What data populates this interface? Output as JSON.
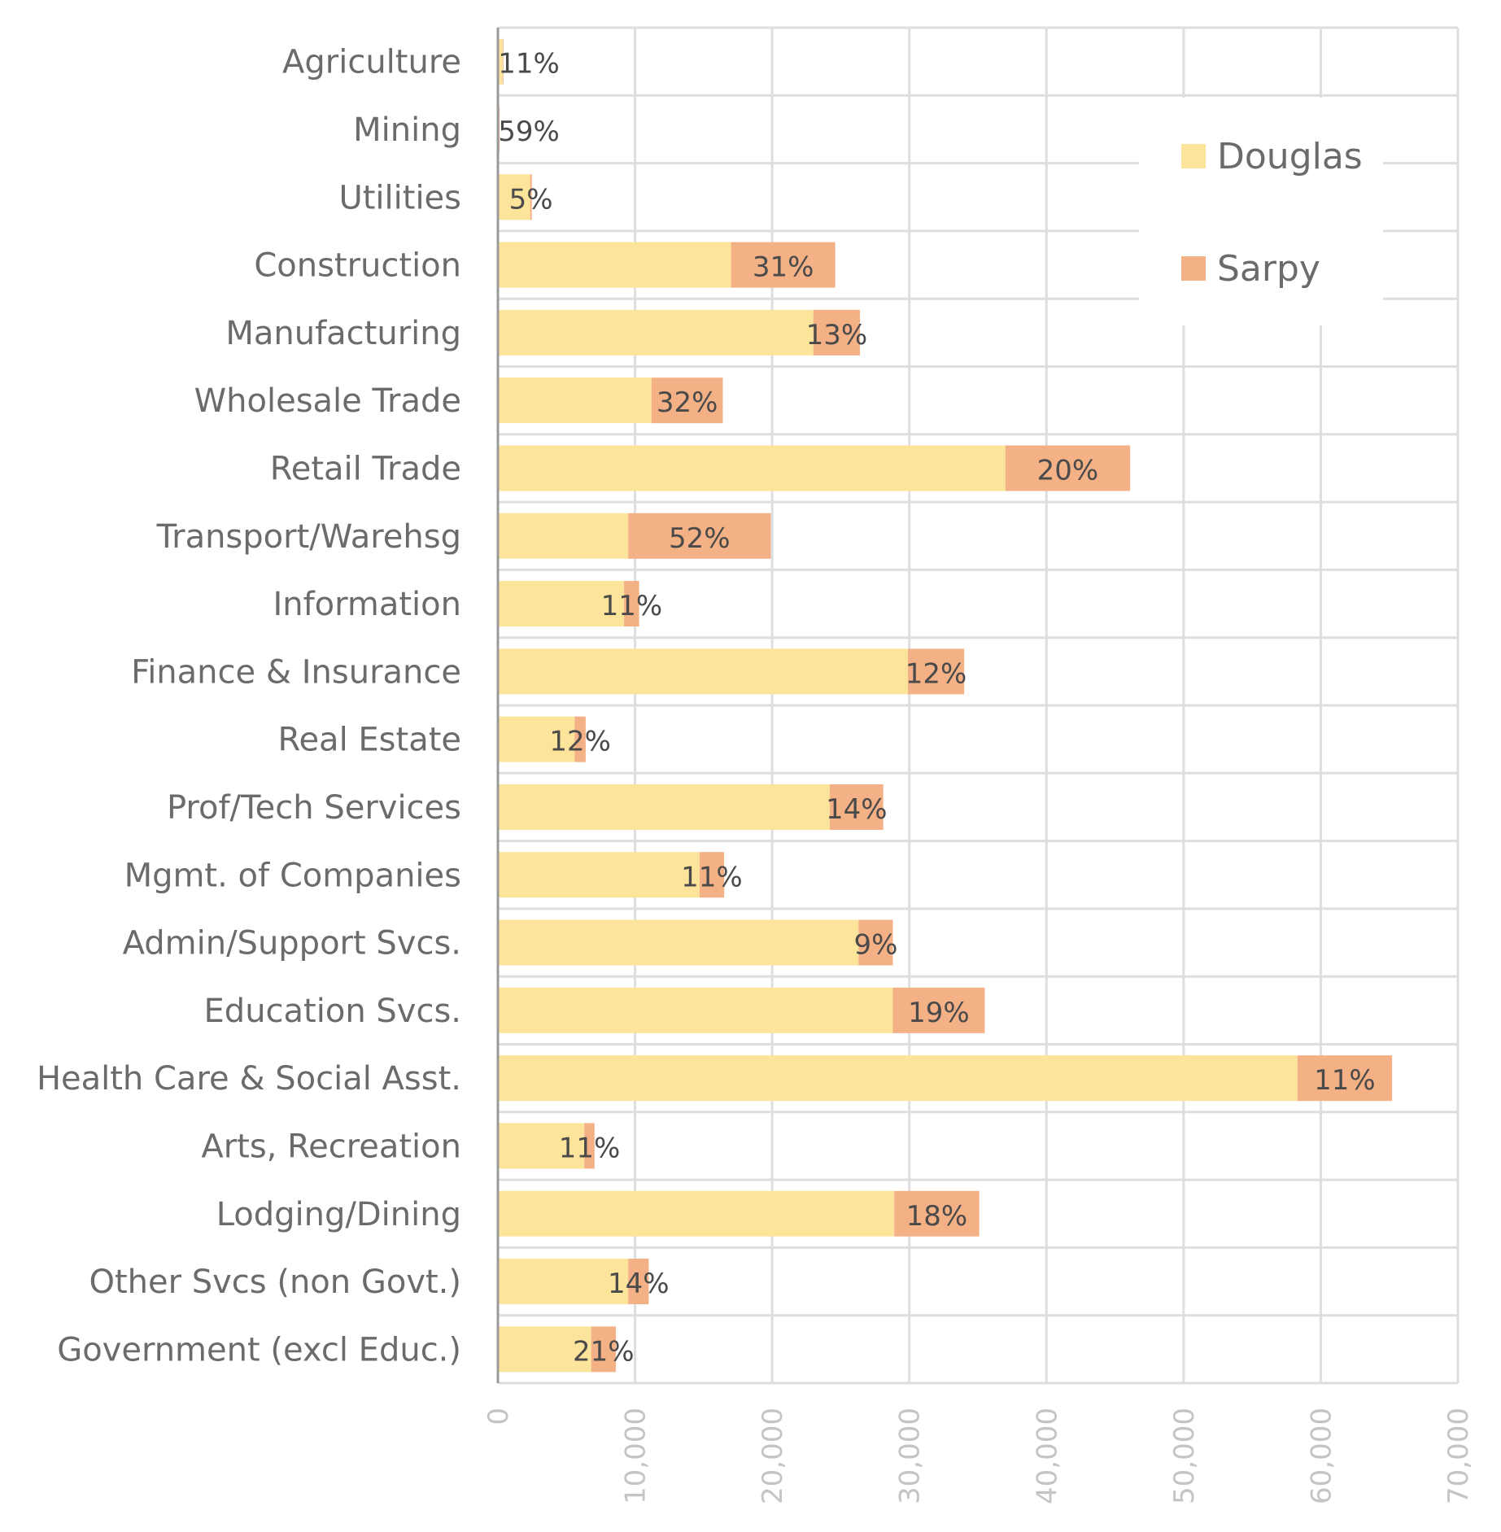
{
  "chart_data": {
    "type": "bar",
    "orientation": "horizontal",
    "stacked": true,
    "title": "",
    "xlabel": "",
    "ylabel": "",
    "xlim": [
      0,
      70000
    ],
    "x_ticks": [
      0,
      10000,
      20000,
      30000,
      40000,
      50000,
      60000,
      70000
    ],
    "x_tick_labels": [
      "0",
      "10,000",
      "20,000",
      "30,000",
      "40,000",
      "50,000",
      "60,000",
      "70,000"
    ],
    "grid": true,
    "legend_position": "top-right",
    "categories": [
      "Agriculture",
      "Mining",
      "Utilities",
      "Construction",
      "Manufacturing",
      "Wholesale Trade",
      "Retail Trade",
      "Transport/Warehsg",
      "Information",
      "Finance & Insurance",
      "Real Estate",
      "Prof/Tech Services",
      "Mgmt. of Companies",
      "Admin/Support Svcs.",
      "Education Svcs.",
      "Health Care & Social Asst.",
      "Arts, Recreation",
      "Lodging/Dining",
      "Other Svcs (non Govt.)",
      "Government (excl Educ.)"
    ],
    "series": [
      {
        "name": "Douglas",
        "color": "#fde49b",
        "values": [
          350,
          50,
          2350,
          17000,
          23000,
          11200,
          37000,
          9500,
          9200,
          29900,
          5600,
          24200,
          14700,
          26300,
          28800,
          58300,
          6300,
          28900,
          9500,
          6800
        ]
      },
      {
        "name": "Sarpy",
        "color": "#f4b186",
        "values": [
          50,
          70,
          120,
          7600,
          3400,
          5200,
          9100,
          10400,
          1100,
          4100,
          800,
          3900,
          1800,
          2500,
          6700,
          6900,
          750,
          6200,
          1500,
          1800
        ]
      }
    ],
    "data_labels": [
      "11%",
      "59%",
      "5%",
      "31%",
      "13%",
      "32%",
      "20%",
      "52%",
      "11%",
      "12%",
      "12%",
      "14%",
      "11%",
      "9%",
      "19%",
      "11%",
      "11%",
      "18%",
      "14%",
      "21%"
    ]
  }
}
